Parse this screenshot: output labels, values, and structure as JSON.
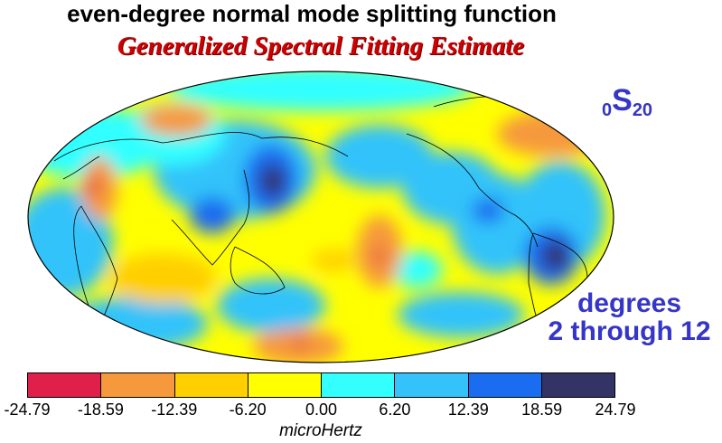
{
  "header": {
    "title": "even-degree normal mode splitting function",
    "subtitle": "Generalized Spectral Fitting Estimate"
  },
  "mode": {
    "left_sub": "0",
    "letter": "S",
    "right_sub": "20"
  },
  "degrees": {
    "line1": "degrees",
    "line2": "2 through 12"
  },
  "colorbar": {
    "colors": [
      "#e0204a",
      "#f6993c",
      "#ffcf00",
      "#ffff00",
      "#33ffff",
      "#33c3fa",
      "#1a6cf0",
      "#333366"
    ],
    "ticks": [
      "-24.79",
      "-18.59",
      "-12.39",
      "-6.20",
      "0.00",
      "6.20",
      "12.39",
      "18.59",
      "24.79"
    ],
    "unit": "microHertz"
  }
}
